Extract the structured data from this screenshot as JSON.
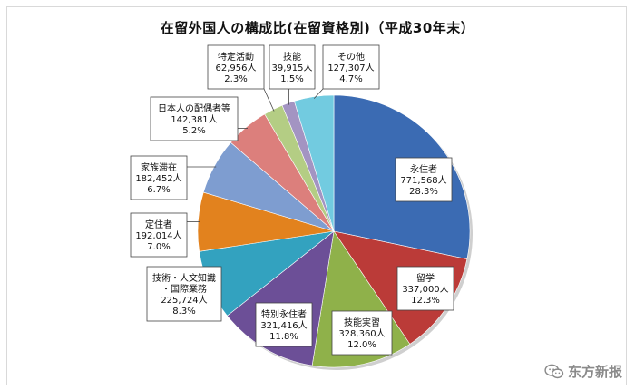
{
  "chart_data": {
    "type": "pie",
    "title": "在留外国人の構成比(在留資格別)（平成30年末）",
    "slices": [
      {
        "name": "永住者",
        "count": "771,568人",
        "percent": "28.3%",
        "value": 28.3,
        "color": "#3b6bb3"
      },
      {
        "name": "留学",
        "count": "337,000人",
        "percent": "12.3%",
        "value": 12.3,
        "color": "#bb3b38"
      },
      {
        "name": "技能実習",
        "count": "328,360人",
        "percent": "12.0%",
        "value": 12.0,
        "color": "#8fb14a"
      },
      {
        "name": "特別永住者",
        "count": "321,416人",
        "percent": "11.8%",
        "value": 11.8,
        "color": "#6c4f97"
      },
      {
        "name": "技術・人文知識・国際業務",
        "count": "225,724人",
        "percent": "8.3%",
        "value": 8.3,
        "color": "#33a2bf"
      },
      {
        "name": "定住者",
        "count": "192,014人",
        "percent": "7.0%",
        "value": 7.0,
        "color": "#e2821e"
      },
      {
        "name": "家族滞在",
        "count": "182,452人",
        "percent": "6.7%",
        "value": 6.7,
        "color": "#7e9dd0"
      },
      {
        "name": "日本人の配偶者等",
        "count": "142,381人",
        "percent": "5.2%",
        "value": 5.2,
        "color": "#dc7f7c"
      },
      {
        "name": "特定活動",
        "count": "62,956人",
        "percent": "2.3%",
        "value": 2.3,
        "color": "#b4cd84"
      },
      {
        "name": "技能",
        "count": "39,915人",
        "percent": "1.5%",
        "value": 1.5,
        "color": "#a394c2"
      },
      {
        "name": "その他",
        "count": "127,307人",
        "percent": "4.7%",
        "value": 4.7,
        "color": "#72cbe0"
      }
    ]
  },
  "watermark": {
    "text": "东方新报",
    "icon": "wechat-icon"
  }
}
